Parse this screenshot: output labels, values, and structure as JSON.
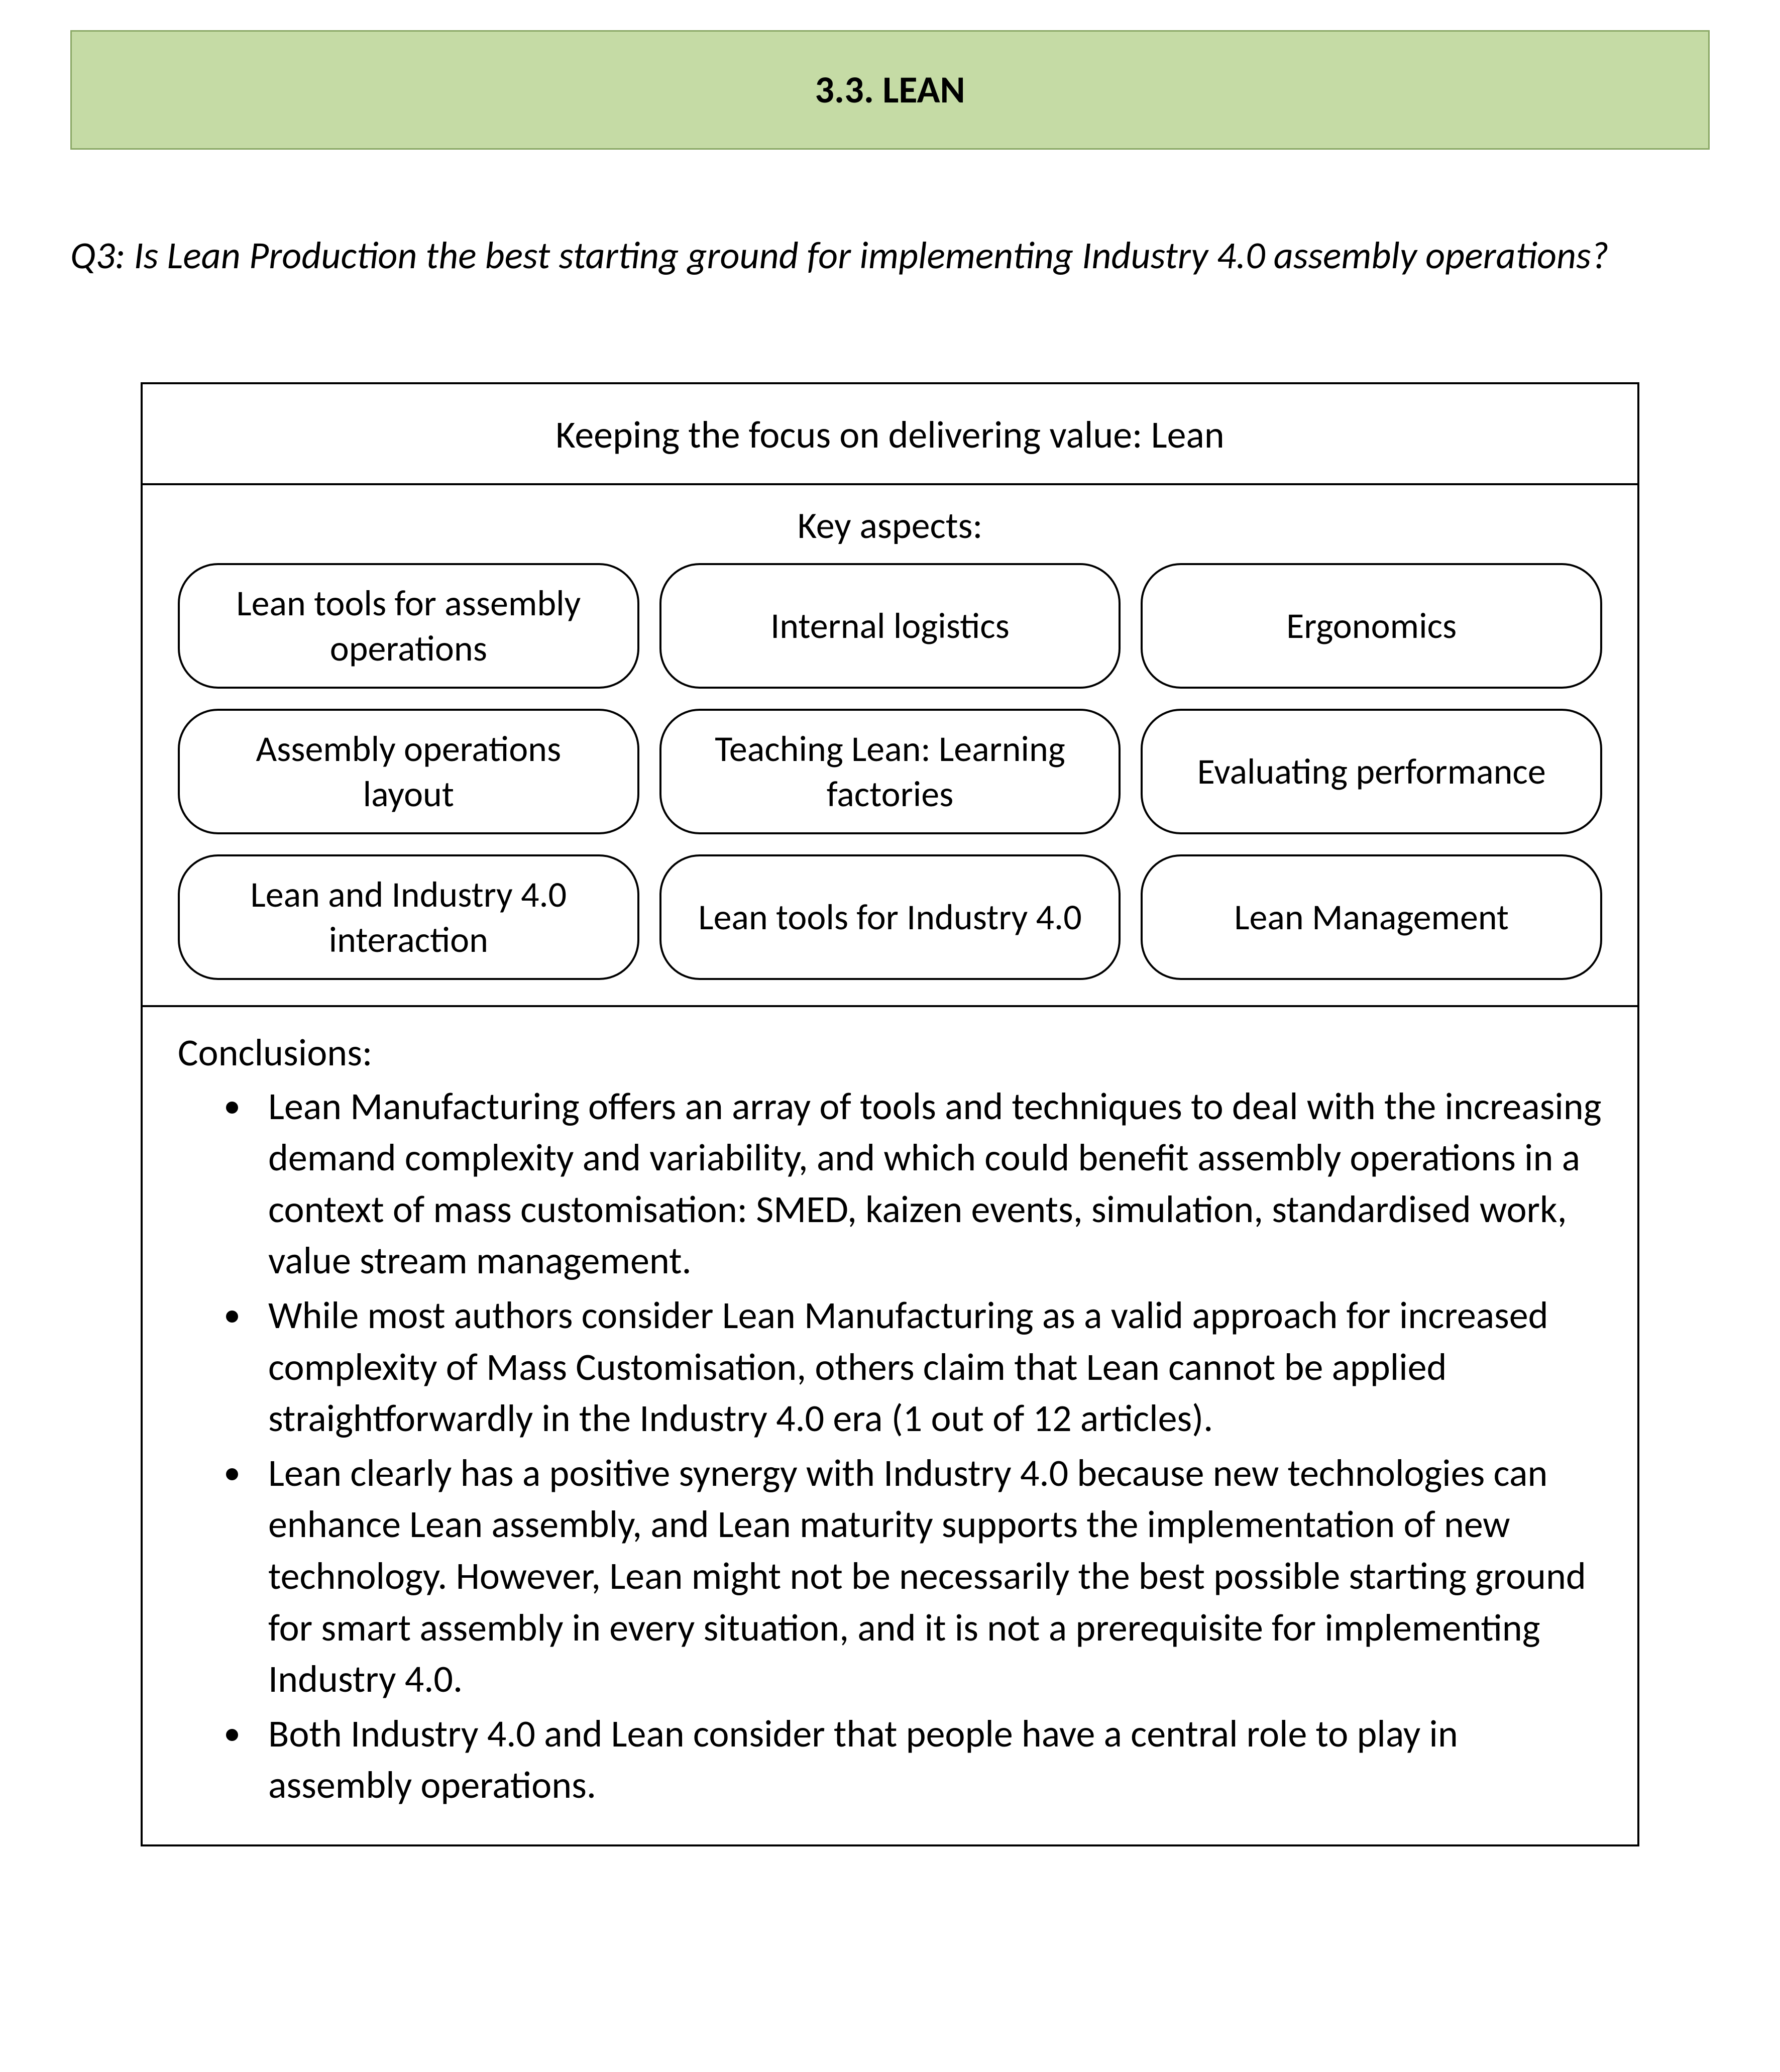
{
  "header": {
    "title": "3.3. LEAN"
  },
  "question": "Q3: Is Lean Production the best starting ground for implementing Industry 4.0 assembly operations?",
  "diagram": {
    "title": "Keeping the focus on delivering value: Lean",
    "aspects_label": "Key aspects:",
    "aspects": [
      "Lean tools for assembly operations",
      "Internal logistics",
      "Ergonomics",
      "Assembly operations layout",
      "Teaching Lean: Learning factories",
      "Evaluating performance",
      "Lean and Industry 4.0 interaction",
      "Lean tools for Industry 4.0",
      "Lean Management"
    ],
    "conclusions_label": "Conclusions:",
    "conclusions": [
      "Lean Manufacturing offers an array of tools and techniques to deal with the increasing demand complexity and variability, and which could benefit assembly operations in a context of mass customisation: SMED, kaizen events, simulation, standardised work, value stream management.",
      "While most authors consider Lean Manufacturing as a valid approach for increased complexity of Mass Customisation, others claim that Lean cannot be applied straightforwardly in the Industry 4.0 era (1 out of 12 articles).",
      "Lean clearly has a positive synergy with Industry 4.0 because new technologies can enhance Lean assembly, and Lean maturity supports the implementation of new technology. However, Lean might not be necessarily the best possible starting ground for smart assembly in every situation, and it is not a prerequisite for implementing Industry 4.0.",
      "Both Industry 4.0 and Lean consider that people have a central role to play in assembly operations."
    ]
  },
  "style": {
    "banner_bg": "#c5dba5",
    "banner_border": "#8aa866",
    "page_bg": "#ffffff",
    "text_color": "#000000",
    "border_color": "#000000",
    "header_fontsize": 76,
    "body_fontsize": 76,
    "aspect_fontsize": 72,
    "pill_radius": 80
  }
}
